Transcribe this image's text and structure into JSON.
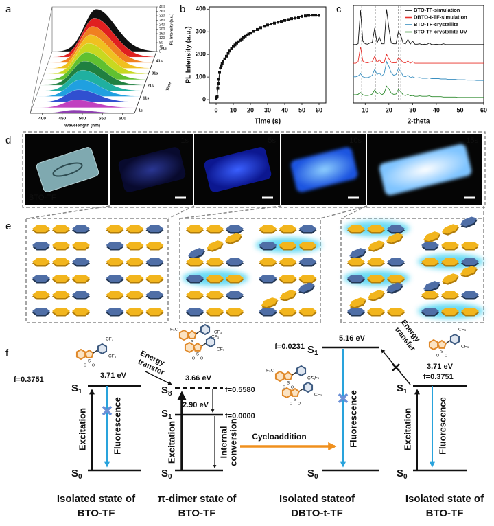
{
  "panel_labels": [
    "a",
    "b",
    "c",
    "d",
    "e",
    "f"
  ],
  "chart_data": [
    {
      "type": "waterfall",
      "x_label": "Wavelength (nm)",
      "z_label": "PL Intensity (a.u.)",
      "depth_label": "Time",
      "xlim": [
        370,
        630
      ],
      "xticks": [
        400,
        450,
        500,
        550,
        600
      ],
      "zlim": [
        0,
        400
      ],
      "zticks": [
        0,
        40,
        80,
        120,
        160,
        200,
        240,
        280,
        320,
        360,
        400
      ],
      "depth_ticks": [
        "1s",
        "11s",
        "21s",
        "31s",
        "41s",
        "51s"
      ],
      "peak_wavelength": 480,
      "series": [
        {
          "color": "#8e3fb0",
          "peak": 30
        },
        {
          "color": "#c040c0",
          "peak": 70
        },
        {
          "color": "#3050d0",
          "peak": 110
        },
        {
          "color": "#20a0e0",
          "peak": 150
        },
        {
          "color": "#20b0a0",
          "peak": 185
        },
        {
          "color": "#208040",
          "peak": 215
        },
        {
          "color": "#60c030",
          "peak": 245
        },
        {
          "color": "#c8d820",
          "peak": 275
        },
        {
          "color": "#f0c020",
          "peak": 300
        },
        {
          "color": "#f08020",
          "peak": 325
        },
        {
          "color": "#e02020",
          "peak": 350
        },
        {
          "color": "#101010",
          "peak": 380
        }
      ]
    },
    {
      "type": "line",
      "markers": true,
      "color": "#111111",
      "x_label": "Time (s)",
      "y_label": "PL Intensity (a.u.)",
      "xlim": [
        -4,
        64
      ],
      "xticks": [
        0,
        10,
        20,
        30,
        40,
        50,
        60
      ],
      "ylim": [
        -15,
        410
      ],
      "yticks": [
        0,
        100,
        200,
        300,
        400
      ],
      "x": [
        0,
        0.3,
        0.6,
        1,
        1.3,
        1.6,
        2,
        2.5,
        3,
        3.5,
        4,
        5,
        6,
        7,
        8,
        9,
        10,
        11,
        12,
        13,
        14,
        15,
        16,
        17,
        18,
        19,
        20,
        22,
        24,
        26,
        28,
        30,
        32,
        34,
        36,
        38,
        40,
        42,
        44,
        46,
        48,
        50,
        52,
        54,
        56,
        58,
        60
      ],
      "values": [
        5,
        10,
        15,
        50,
        70,
        90,
        120,
        140,
        150,
        160,
        168,
        180,
        192,
        205,
        215,
        225,
        235,
        242,
        250,
        256,
        262,
        268,
        274,
        280,
        286,
        290,
        294,
        302,
        310,
        318,
        324,
        330,
        334,
        338,
        342,
        346,
        350,
        354,
        358,
        360,
        364,
        368,
        370,
        372,
        373,
        373,
        372
      ]
    },
    {
      "type": "line",
      "x_label": "2-theta",
      "legend": "top-right",
      "xlim": [
        5,
        60
      ],
      "xticks": [
        10,
        20,
        30,
        40,
        50,
        60
      ],
      "ylim": [
        0,
        260
      ],
      "reference_lines": [
        8.5,
        14.3,
        18.7,
        19.6,
        24,
        25
      ],
      "x": [
        5,
        6,
        7,
        8,
        9,
        10,
        11,
        12,
        13,
        14,
        15,
        16,
        17,
        18,
        19,
        20,
        21,
        22,
        23,
        24,
        25,
        26,
        27,
        28,
        29,
        30,
        31,
        32,
        33,
        34,
        35,
        36,
        37,
        38,
        39,
        40,
        41,
        42,
        43,
        44,
        45,
        46,
        47,
        48,
        49,
        50,
        51,
        52,
        53,
        54,
        55,
        56,
        57,
        58,
        59,
        60
      ],
      "series": [
        {
          "name": "BTO-TF-simulation",
          "color": "#111111",
          "values": [
            156,
            156,
            158,
            247,
            165,
            158,
            157,
            160,
            162,
            200,
            160,
            175,
            158,
            158,
            250,
            200,
            160,
            158,
            158,
            190,
            180,
            160,
            158,
            170,
            157,
            165,
            157,
            157,
            158,
            156,
            157,
            156,
            160,
            156,
            156,
            157,
            156,
            156,
            158,
            156,
            156,
            156,
            156,
            156,
            156,
            156,
            156,
            156,
            156,
            156,
            156,
            156,
            156,
            156,
            156,
            156
          ]
        },
        {
          "name": "DBTO-t-TF-simulation",
          "color": "#e8302a",
          "values": [
            106,
            106,
            110,
            150,
            112,
            108,
            107,
            109,
            110,
            125,
            108,
            115,
            107,
            108,
            130,
            118,
            108,
            107,
            107,
            120,
            115,
            108,
            107,
            112,
            106,
            110,
            106,
            106,
            106,
            106,
            106,
            106,
            106,
            106,
            106,
            106,
            106,
            106,
            106,
            106,
            106,
            106,
            106,
            106,
            106,
            106,
            106,
            106,
            106,
            106,
            106,
            106,
            106,
            106,
            106,
            106
          ]
        },
        {
          "name": "BTO-TF-crystallite",
          "color": "#3a8fc0",
          "values": [
            70,
            70,
            72,
            78,
            70,
            68,
            68,
            70,
            74,
            90,
            76,
            80,
            72,
            78,
            110,
            98,
            80,
            74,
            76,
            92,
            84,
            72,
            70,
            74,
            68,
            70,
            67,
            67,
            68,
            66,
            66,
            66,
            67,
            65,
            65,
            65,
            65,
            64,
            64,
            64,
            63,
            63,
            63,
            63,
            62,
            62,
            62,
            62,
            61,
            61,
            61,
            61,
            60,
            60,
            60,
            60
          ]
        },
        {
          "name": "BTO-TF-crystallite-UV",
          "color": "#2e8b2e",
          "values": [
            22,
            22,
            23,
            28,
            22,
            20,
            20,
            21,
            24,
            35,
            24,
            28,
            22,
            26,
            45,
            38,
            26,
            23,
            24,
            36,
            30,
            22,
            20,
            23,
            19,
            20,
            18,
            18,
            19,
            18,
            18,
            18,
            19,
            17,
            17,
            17,
            17,
            17,
            16,
            16,
            16,
            16,
            16,
            16,
            15,
            15,
            15,
            15,
            15,
            15,
            15,
            15,
            15,
            15,
            15,
            15
          ]
        }
      ]
    }
  ],
  "panel_d": {
    "frames": [
      "BTO-TF",
      "1s",
      "5s",
      "10s",
      "15s"
    ]
  },
  "panel_f": {
    "substituents": [
      "CF₃",
      "F₃C"
    ],
    "atoms": [
      "S",
      "O"
    ],
    "left": {
      "f": "f=0.3751",
      "s1": {
        "symbol": "S",
        "index": "1"
      },
      "energy": "3.71 eV",
      "excitation": "Excitation",
      "fluorescence": "Fluorescence",
      "s0": {
        "symbol": "S",
        "index": "0"
      },
      "caption": [
        "Isolated state of",
        "BTO-TF"
      ]
    },
    "transfer_1": [
      "Energy",
      "transfer"
    ],
    "middle": {
      "s8": {
        "symbol": "S",
        "index": "8"
      },
      "energy_s8": "3.66 eV",
      "f_s8": "f=0.5580",
      "energy_s1": "2.90 eV",
      "s1": {
        "symbol": "S",
        "index": "1"
      },
      "f_s1": "f=0.0000",
      "excitation": "Excitation",
      "conversion": [
        "Internal",
        "conversion"
      ],
      "s0": {
        "symbol": "S",
        "index": "0"
      },
      "caption": [
        "π-dimer state of",
        "BTO-TF"
      ]
    },
    "reaction": "Cycloaddition",
    "product": {
      "f": "f=0.0231",
      "s1": {
        "symbol": "S",
        "index": "1"
      },
      "energy": "5.16 eV",
      "fluorescence": "Fluorescence",
      "s0": {
        "symbol": "S",
        "index": "0"
      },
      "caption": [
        "Isolated stateof",
        "DBTO-t-TF"
      ]
    },
    "transfer_2": [
      "Energy",
      "transfer"
    ],
    "right": {
      "f": "f=0.3751",
      "s1": {
        "symbol": "S",
        "index": "1"
      },
      "energy": "3.71 eV",
      "excitation": "Excitation",
      "fluorescence": "Fluorescence",
      "s0": {
        "symbol": "S",
        "index": "0"
      },
      "caption": [
        "Isolated state of",
        "BTO-TF"
      ]
    }
  }
}
